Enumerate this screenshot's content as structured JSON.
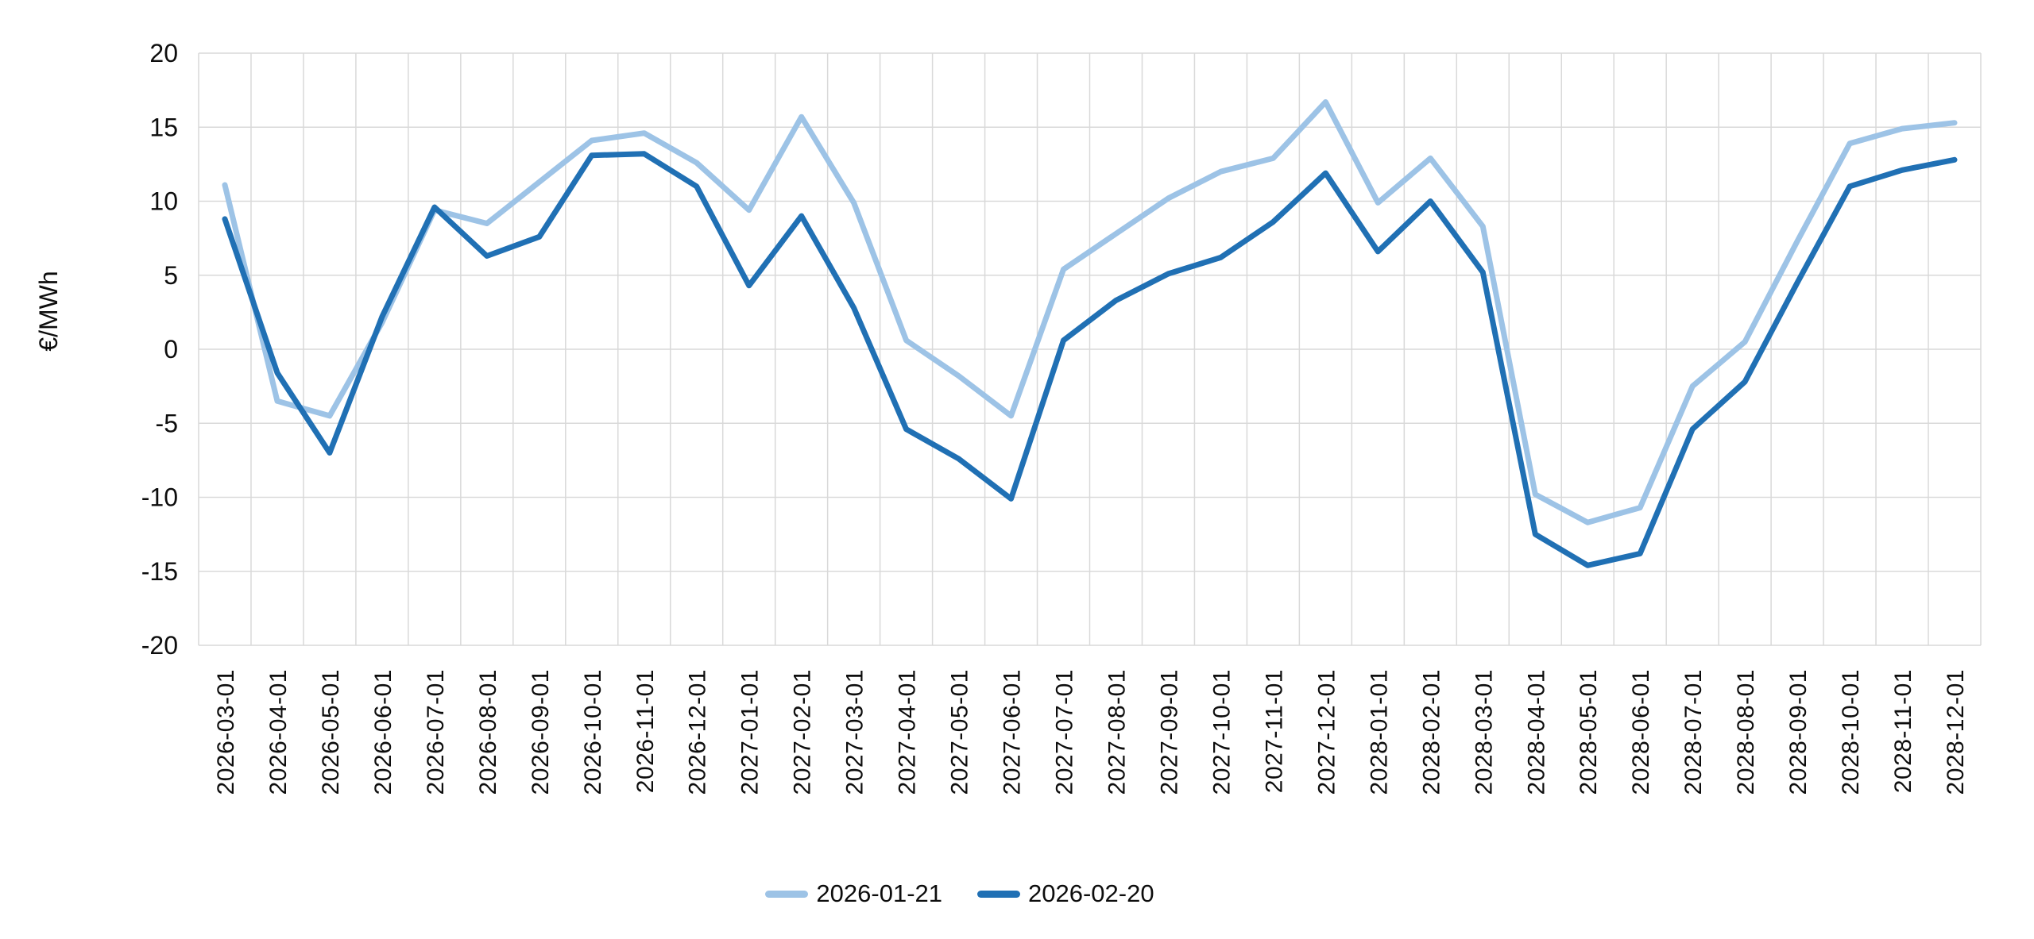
{
  "chart_data": {
    "type": "line",
    "title": "",
    "xlabel": "",
    "ylabel": "€/MWh",
    "ylim": [
      -20,
      20
    ],
    "yticks": [
      20,
      15,
      10,
      5,
      0,
      -5,
      -10,
      -15,
      -20
    ],
    "grid": true,
    "grid_color": "#D9D9D9",
    "legend_position": "bottom",
    "categories": [
      "2026-03-01",
      "2026-04-01",
      "2026-05-01",
      "2026-06-01",
      "2026-07-01",
      "2026-08-01",
      "2026-09-01",
      "2026-10-01",
      "2026-11-01",
      "2026-12-01",
      "2027-01-01",
      "2027-02-01",
      "2027-03-01",
      "2027-04-01",
      "2027-05-01",
      "2027-06-01",
      "2027-07-01",
      "2027-08-01",
      "2027-09-01",
      "2027-10-01",
      "2027-11-01",
      "2027-12-01",
      "2028-01-01",
      "2028-02-01",
      "2028-03-01",
      "2028-04-01",
      "2028-05-01",
      "2028-06-01",
      "2028-07-01",
      "2028-08-01",
      "2028-09-01",
      "2028-10-01",
      "2028-11-01",
      "2028-12-01"
    ],
    "series": [
      {
        "name": "2026-01-21",
        "color": "#9DC3E6",
        "values": [
          11.1,
          -3.5,
          -4.5,
          1.8,
          9.4,
          8.5,
          11.3,
          14.1,
          14.6,
          12.6,
          9.4,
          15.7,
          9.9,
          0.6,
          -1.8,
          -4.5,
          5.4,
          7.8,
          10.2,
          12.0,
          12.9,
          16.7,
          9.9,
          12.9,
          8.3,
          -9.8,
          -11.7,
          -10.7,
          -2.5,
          0.5,
          7.3,
          13.9,
          14.9,
          15.3
        ]
      },
      {
        "name": "2026-02-20",
        "color": "#2070B4",
        "values": [
          8.8,
          -1.6,
          -7.0,
          2.2,
          9.6,
          6.3,
          7.6,
          13.1,
          13.2,
          11.0,
          4.3,
          9.0,
          2.8,
          -5.4,
          -7.4,
          -10.1,
          0.6,
          3.3,
          5.1,
          6.2,
          8.6,
          11.9,
          6.6,
          10.0,
          5.2,
          -12.5,
          -14.6,
          -13.8,
          -5.4,
          -2.2,
          4.5,
          11.0,
          12.1,
          12.8
        ]
      }
    ]
  }
}
